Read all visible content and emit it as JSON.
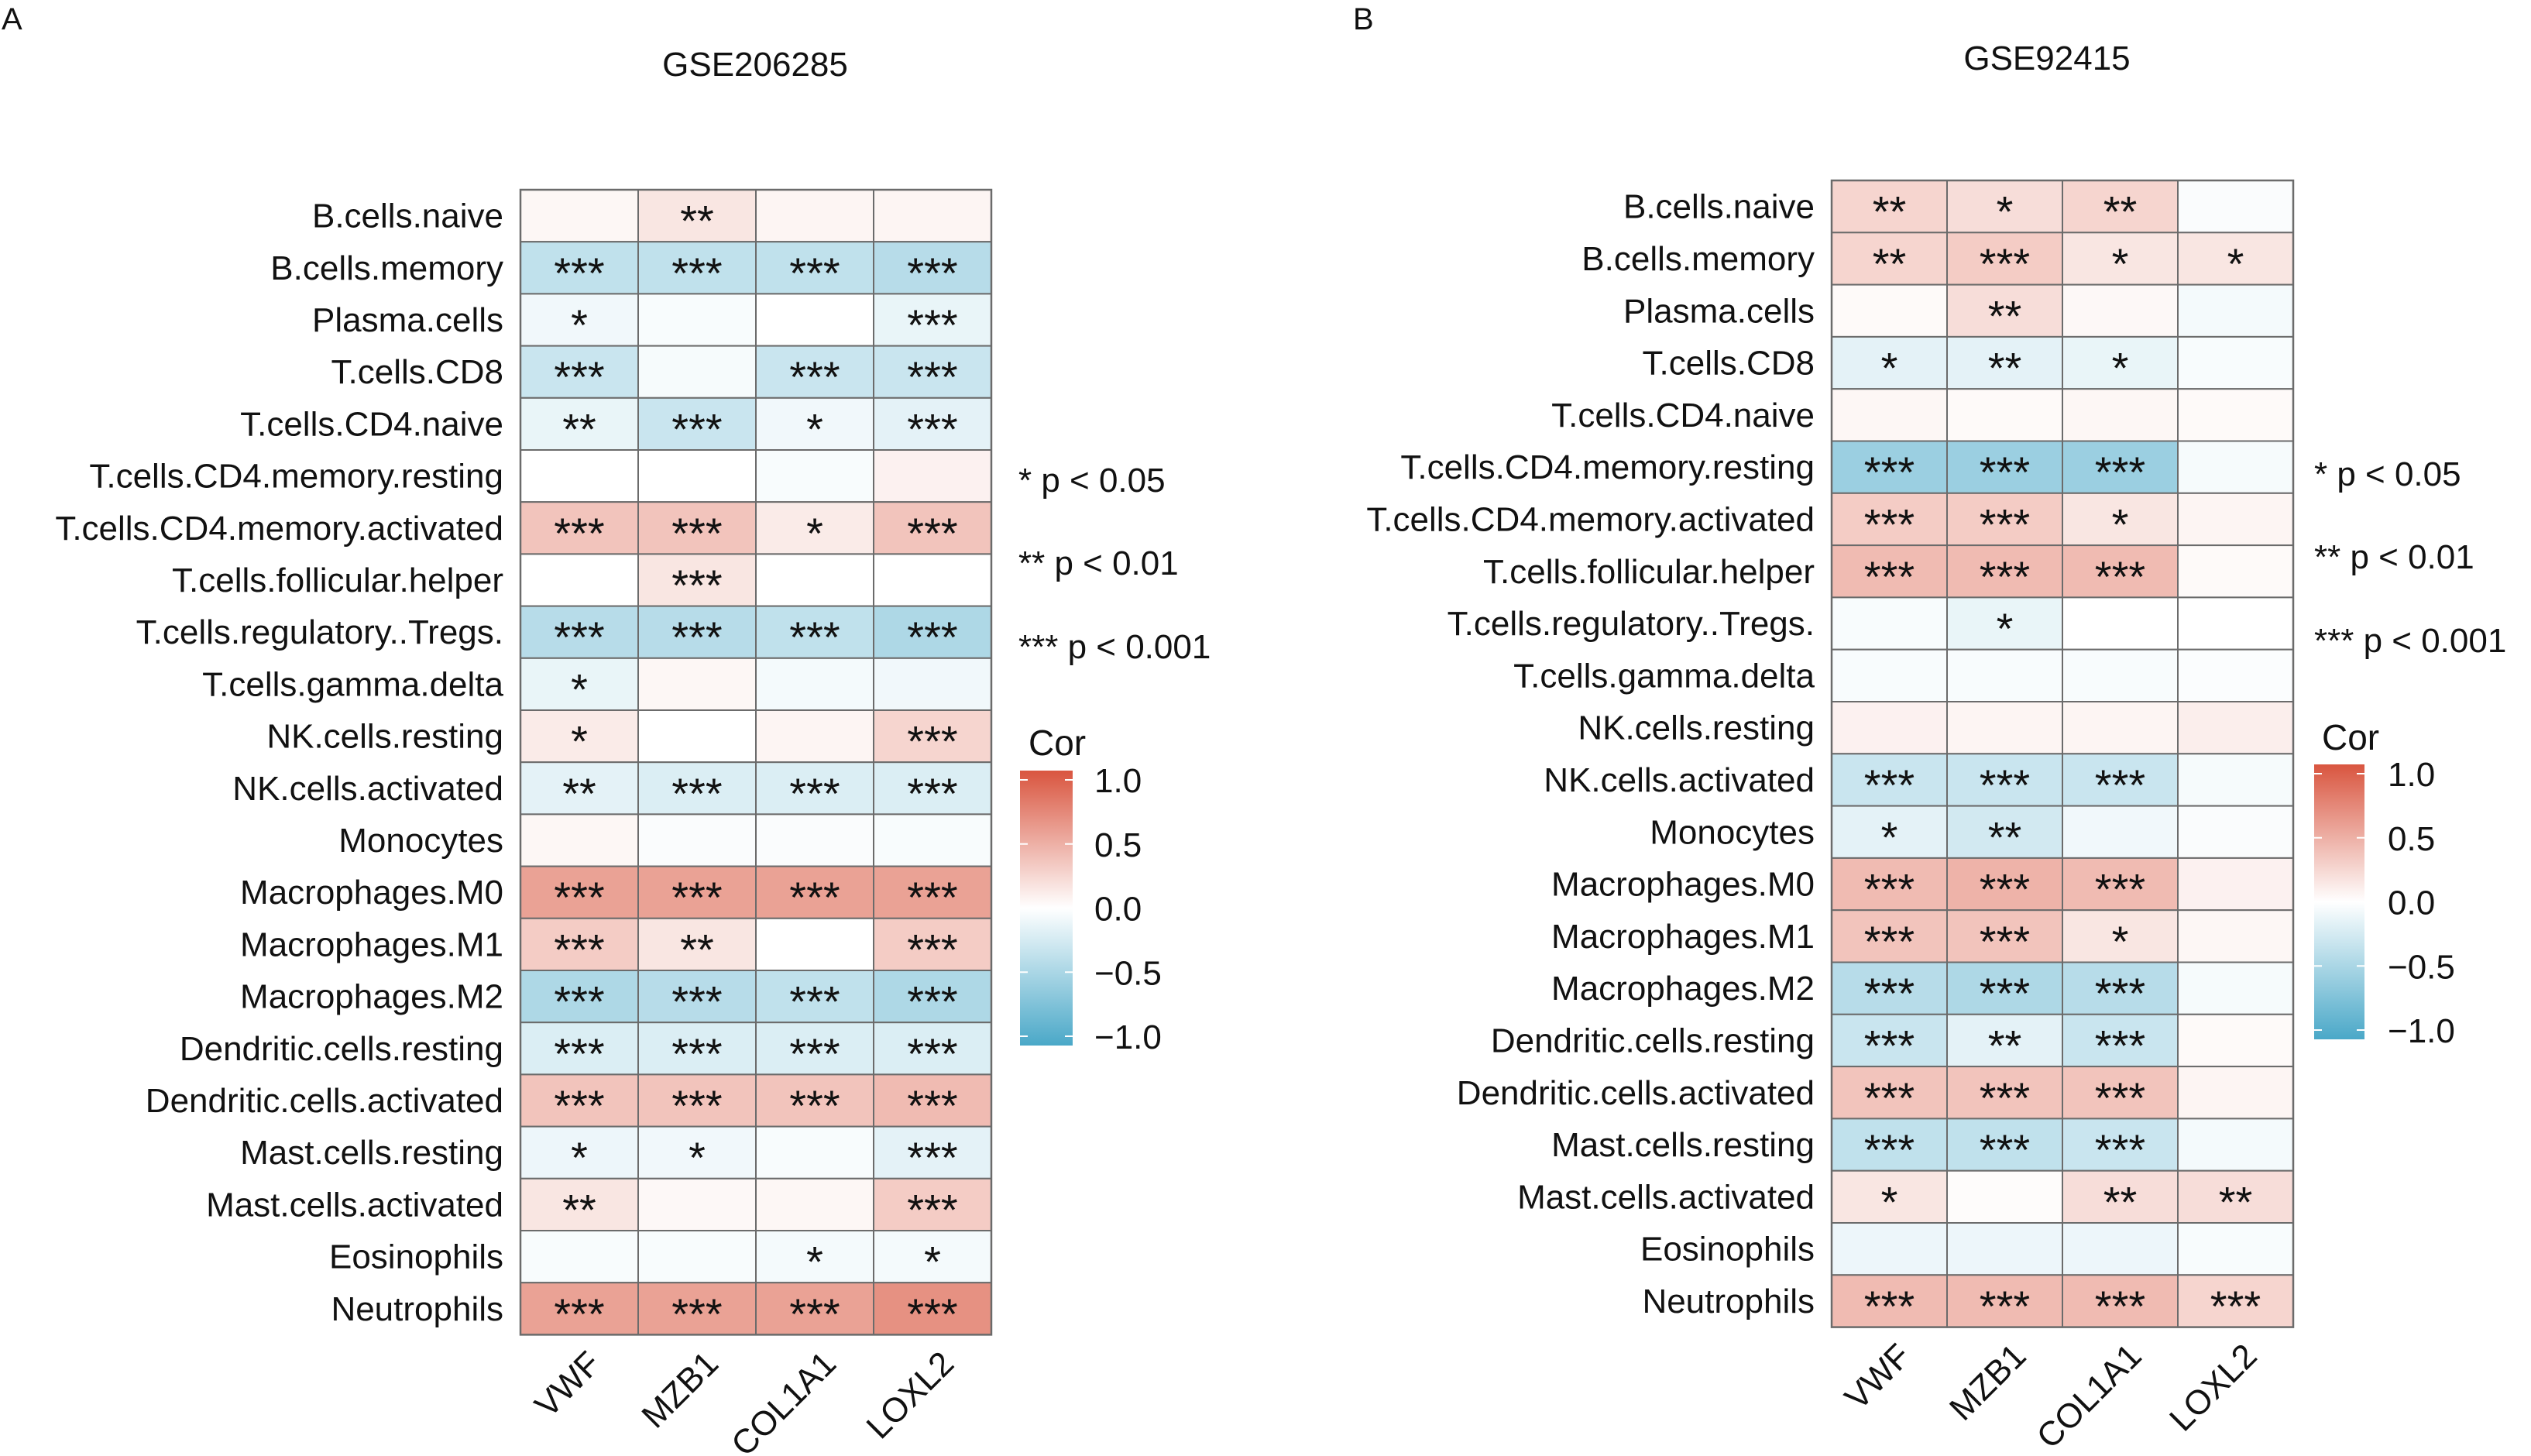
{
  "figure": {
    "legend_note": {
      "lines": [
        "* p < 0.05",
        "** p < 0.01",
        "*** p < 0.001"
      ]
    },
    "colorbar": {
      "title": "Cor",
      "ticks": [
        "1.0",
        "0.5",
        "0.0",
        "−0.5",
        "−1.0"
      ],
      "colors": {
        "low": "#4AA8C8",
        "mid": "#FFFFFF",
        "high": "#D9553F"
      }
    }
  },
  "chart_data": [
    {
      "panel_label": "A",
      "type": "heatmap",
      "title": "GSE206285",
      "value_range": [
        -1.0,
        1.0
      ],
      "columns": [
        "VWF",
        "MZB1",
        "COL1A1",
        "LOXL2"
      ],
      "rows": [
        "B.cells.naive",
        "B.cells.memory",
        "Plasma.cells",
        "T.cells.CD8",
        "T.cells.CD4.naive",
        "T.cells.CD4.memory.resting",
        "T.cells.CD4.memory.activated",
        "T.cells.follicular.helper",
        "T.cells.regulatory..Tregs.",
        "T.cells.gamma.delta",
        "NK.cells.resting",
        "NK.cells.activated",
        "Monocytes",
        "Macrophages.M0",
        "Macrophages.M1",
        "Macrophages.M2",
        "Dendritic.cells.resting",
        "Dendritic.cells.activated",
        "Mast.cells.resting",
        "Mast.cells.activated",
        "Eosinophils",
        "Neutrophils"
      ],
      "values": [
        [
          0.05,
          0.15,
          0.06,
          0.06
        ],
        [
          -0.35,
          -0.35,
          -0.35,
          -0.4
        ],
        [
          -0.08,
          -0.04,
          0.0,
          -0.12
        ],
        [
          -0.3,
          -0.05,
          -0.3,
          -0.3
        ],
        [
          -0.12,
          -0.3,
          -0.08,
          -0.15
        ],
        [
          0.0,
          0.0,
          -0.04,
          0.08
        ],
        [
          0.35,
          0.35,
          0.12,
          0.35
        ],
        [
          0.0,
          0.15,
          0.0,
          0.0
        ],
        [
          -0.4,
          -0.4,
          -0.35,
          -0.45
        ],
        [
          -0.12,
          0.05,
          -0.06,
          -0.08
        ],
        [
          0.12,
          0.0,
          0.06,
          0.25
        ],
        [
          -0.15,
          -0.2,
          -0.2,
          -0.2
        ],
        [
          0.05,
          -0.03,
          -0.03,
          -0.04
        ],
        [
          0.55,
          0.55,
          0.55,
          0.55
        ],
        [
          0.3,
          0.15,
          0.0,
          0.3
        ],
        [
          -0.45,
          -0.4,
          -0.35,
          -0.45
        ],
        [
          -0.2,
          -0.2,
          -0.2,
          -0.2
        ],
        [
          0.35,
          0.35,
          0.35,
          0.4
        ],
        [
          -0.1,
          -0.08,
          -0.04,
          -0.15
        ],
        [
          0.15,
          0.04,
          0.05,
          0.3
        ],
        [
          -0.04,
          -0.04,
          -0.06,
          -0.06
        ],
        [
          0.55,
          0.55,
          0.55,
          0.65
        ]
      ],
      "significance": [
        [
          "",
          "**",
          "",
          ""
        ],
        [
          "***",
          "***",
          "***",
          "***"
        ],
        [
          "*",
          "",
          "",
          "***"
        ],
        [
          "***",
          "",
          "***",
          "***"
        ],
        [
          "**",
          "***",
          "*",
          "***"
        ],
        [
          "",
          "",
          "",
          ""
        ],
        [
          "***",
          "***",
          "*",
          "***"
        ],
        [
          "",
          "***",
          "",
          ""
        ],
        [
          "***",
          "***",
          "***",
          "***"
        ],
        [
          "*",
          "",
          "",
          ""
        ],
        [
          "*",
          "",
          "",
          "***"
        ],
        [
          "**",
          "***",
          "***",
          "***"
        ],
        [
          "",
          "",
          "",
          ""
        ],
        [
          "***",
          "***",
          "***",
          "***"
        ],
        [
          "***",
          "**",
          "",
          "***"
        ],
        [
          "***",
          "***",
          "***",
          "***"
        ],
        [
          "***",
          "***",
          "***",
          "***"
        ],
        [
          "***",
          "***",
          "***",
          "***"
        ],
        [
          "*",
          "*",
          "",
          "***"
        ],
        [
          "**",
          "",
          "",
          "***"
        ],
        [
          "",
          "",
          "*",
          "*"
        ],
        [
          "***",
          "***",
          "***",
          "***"
        ]
      ]
    },
    {
      "panel_label": "B",
      "type": "heatmap",
      "title": "GSE92415",
      "value_range": [
        -1.0,
        1.0
      ],
      "columns": [
        "VWF",
        "MZB1",
        "COL1A1",
        "LOXL2"
      ],
      "rows": [
        "B.cells.naive",
        "B.cells.memory",
        "Plasma.cells",
        "T.cells.CD8",
        "T.cells.CD4.naive",
        "T.cells.CD4.memory.resting",
        "T.cells.CD4.memory.activated",
        "T.cells.follicular.helper",
        "T.cells.regulatory..Tregs.",
        "T.cells.gamma.delta",
        "NK.cells.resting",
        "NK.cells.activated",
        "Monocytes",
        "Macrophages.M0",
        "Macrophages.M1",
        "Macrophages.M2",
        "Dendritic.cells.resting",
        "Dendritic.cells.activated",
        "Mast.cells.resting",
        "Mast.cells.activated",
        "Eosinophils",
        "Neutrophils"
      ],
      "values": [
        [
          0.25,
          0.2,
          0.25,
          -0.03
        ],
        [
          0.25,
          0.3,
          0.15,
          0.15
        ],
        [
          0.03,
          0.2,
          0.04,
          -0.06
        ],
        [
          -0.15,
          -0.15,
          -0.12,
          -0.04
        ],
        [
          0.05,
          0.03,
          0.05,
          0.03
        ],
        [
          -0.55,
          -0.55,
          -0.55,
          -0.05
        ],
        [
          0.3,
          0.3,
          0.15,
          0.06
        ],
        [
          0.4,
          0.4,
          0.4,
          0.03
        ],
        [
          -0.04,
          -0.12,
          0.0,
          0.0
        ],
        [
          -0.04,
          -0.04,
          -0.04,
          -0.02
        ],
        [
          0.08,
          0.06,
          0.06,
          0.1
        ],
        [
          -0.3,
          -0.3,
          -0.3,
          -0.05
        ],
        [
          -0.15,
          -0.25,
          -0.08,
          -0.03
        ],
        [
          0.4,
          0.45,
          0.4,
          0.08
        ],
        [
          0.35,
          0.35,
          0.15,
          0.05
        ],
        [
          -0.4,
          -0.45,
          -0.4,
          -0.05
        ],
        [
          -0.3,
          -0.15,
          -0.3,
          0.03
        ],
        [
          0.35,
          0.35,
          0.35,
          0.06
        ],
        [
          -0.35,
          -0.35,
          -0.3,
          -0.06
        ],
        [
          0.15,
          0.02,
          0.2,
          0.2
        ],
        [
          -0.1,
          -0.1,
          -0.1,
          -0.04
        ],
        [
          0.4,
          0.4,
          0.4,
          0.25
        ]
      ],
      "significance": [
        [
          "**",
          "*",
          "**",
          ""
        ],
        [
          "**",
          "***",
          "*",
          "*"
        ],
        [
          "",
          "**",
          "",
          ""
        ],
        [
          "*",
          "**",
          "*",
          ""
        ],
        [
          "",
          "",
          "",
          ""
        ],
        [
          "***",
          "***",
          "***",
          ""
        ],
        [
          "***",
          "***",
          "*",
          ""
        ],
        [
          "***",
          "***",
          "***",
          ""
        ],
        [
          "",
          "*",
          "",
          ""
        ],
        [
          "",
          "",
          "",
          ""
        ],
        [
          "",
          "",
          "",
          ""
        ],
        [
          "***",
          "***",
          "***",
          ""
        ],
        [
          "*",
          "**",
          "",
          ""
        ],
        [
          "***",
          "***",
          "***",
          ""
        ],
        [
          "***",
          "***",
          "*",
          ""
        ],
        [
          "***",
          "***",
          "***",
          ""
        ],
        [
          "***",
          "**",
          "***",
          ""
        ],
        [
          "***",
          "***",
          "***",
          ""
        ],
        [
          "***",
          "***",
          "***",
          ""
        ],
        [
          "*",
          "",
          "**",
          "**"
        ],
        [
          "",
          "",
          "",
          ""
        ],
        [
          "***",
          "***",
          "***",
          "***"
        ]
      ]
    }
  ]
}
